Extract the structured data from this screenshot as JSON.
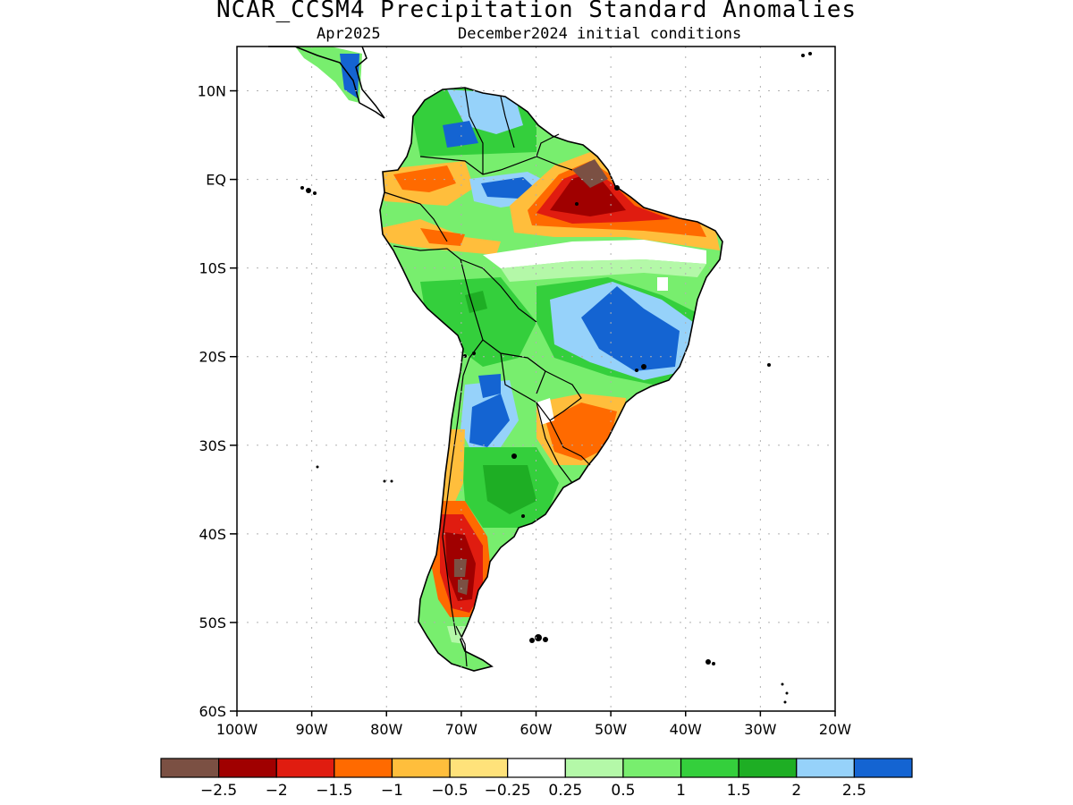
{
  "title": "NCAR_CCSM4 Precipitation Standard Anomalies",
  "subtitle_left": "Apr2025",
  "subtitle_right": "December2024 initial conditions",
  "map": {
    "region": "South America",
    "lon_range": [
      -100,
      -20
    ],
    "lat_range": [
      -60,
      15
    ],
    "lat_ticks": [
      {
        "value": 10,
        "label": "10N"
      },
      {
        "value": 0,
        "label": "EQ"
      },
      {
        "value": -10,
        "label": "10S"
      },
      {
        "value": -20,
        "label": "20S"
      },
      {
        "value": -30,
        "label": "30S"
      },
      {
        "value": -40,
        "label": "40S"
      },
      {
        "value": -50,
        "label": "50S"
      },
      {
        "value": -60,
        "label": "60S"
      }
    ],
    "lon_ticks": [
      {
        "value": -100,
        "label": "100W"
      },
      {
        "value": -90,
        "label": "90W"
      },
      {
        "value": -80,
        "label": "80W"
      },
      {
        "value": -70,
        "label": "70W"
      },
      {
        "value": -60,
        "label": "60W"
      },
      {
        "value": -50,
        "label": "50W"
      },
      {
        "value": -40,
        "label": "40W"
      },
      {
        "value": -30,
        "label": "30W"
      },
      {
        "value": -20,
        "label": "20W"
      }
    ],
    "grid": "dotted"
  },
  "colorbar": {
    "bins": [
      {
        "color": "#7b5043",
        "from": null,
        "to": -2.5
      },
      {
        "color": "#a00000",
        "from": -2.5,
        "to": -2
      },
      {
        "color": "#e01c10",
        "from": -2,
        "to": -1.5
      },
      {
        "color": "#ff6a00",
        "from": -1.5,
        "to": -1
      },
      {
        "color": "#ffbe3c",
        "from": -1,
        "to": -0.5
      },
      {
        "color": "#ffe27a",
        "from": -0.5,
        "to": -0.25
      },
      {
        "color": "#ffffff",
        "from": -0.25,
        "to": 0.25
      },
      {
        "color": "#b4f8a8",
        "from": 0.25,
        "to": 0.5
      },
      {
        "color": "#78ee6e",
        "from": 0.5,
        "to": 1
      },
      {
        "color": "#34cf3c",
        "from": 1,
        "to": 1.5
      },
      {
        "color": "#1eae24",
        "from": 1.5,
        "to": 2
      },
      {
        "color": "#96d2fa",
        "from": 2,
        "to": 2.5
      },
      {
        "color": "#1464d2",
        "from": 2.5,
        "to": null
      }
    ],
    "labels": [
      "−2.5",
      "−2",
      "−1.5",
      "−1",
      "−0.5",
      "−0.25",
      "0.25",
      "0.5",
      "1",
      "1.5",
      "2",
      "2.5"
    ]
  }
}
